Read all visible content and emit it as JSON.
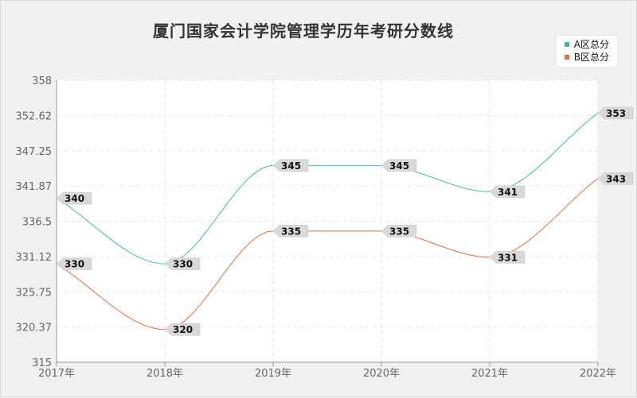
{
  "chart_data": {
    "type": "line",
    "title": "厦门国家会计学院管理学历年考研分数线",
    "categories": [
      "2017年",
      "2018年",
      "2019年",
      "2020年",
      "2021年",
      "2022年"
    ],
    "ylim": [
      315,
      358
    ],
    "yticks": [
      "315",
      "320.37",
      "325.75",
      "331.12",
      "336.5",
      "341.87",
      "347.25",
      "352.62",
      "358"
    ],
    "grid": true,
    "legend_position": "top-right",
    "series": [
      {
        "name": "A区总分",
        "color": "#3dbd94",
        "values": [
          340,
          330,
          345,
          345,
          341,
          353
        ]
      },
      {
        "name": "B区总分",
        "color": "#e0734a",
        "values": [
          330,
          320,
          335,
          335,
          331,
          343
        ]
      }
    ]
  }
}
